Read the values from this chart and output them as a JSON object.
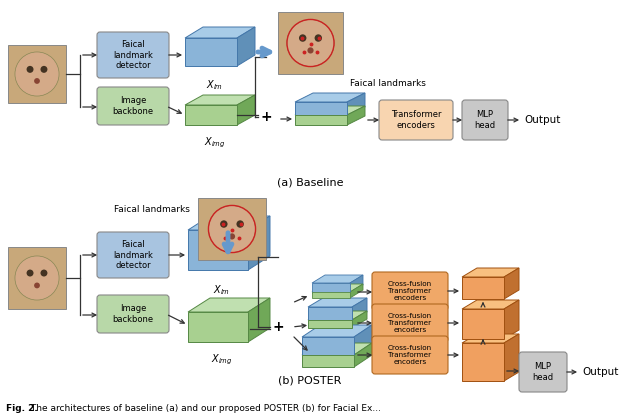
{
  "fig_width": 6.4,
  "fig_height": 4.19,
  "dpi": 100,
  "bg_color": "#ffffff",
  "blue_box_color": "#a8c4e0",
  "green_box_color": "#b8d8a8",
  "orange_box_color": "#f0a868",
  "peach_box_color": "#f8d5b0",
  "gray_box_color": "#c8c8c8",
  "blue_slab_face": "#8ab4d8",
  "blue_slab_top": "#a8cce8",
  "blue_slab_side": "#6090b8",
  "green_slab_face": "#a8d090",
  "green_slab_top": "#c0e0b0",
  "green_slab_side": "#70a858",
  "orange_3d_face": "#f0a060",
  "orange_3d_top": "#f8c080",
  "orange_3d_side": "#c07030",
  "label_a": "(a) Baseline",
  "label_b": "(b) POSTER",
  "detector_text": "Faical\nlandmark\ndetector",
  "backbone_text": "Image\nbackbone",
  "transformer_text": "Transformer\nencoders",
  "mlp_text": "MLP\nhead",
  "output_text": "Output",
  "cross_fusion_text": "Cross-fusion\nTransformer\nencoders",
  "landmark_text": "Faical landmarks",
  "caption_bold": "Fig. 2.",
  "caption_rest": " The architectures of baseline (a) and our proposed POSTER (b) for Facial Ex..."
}
